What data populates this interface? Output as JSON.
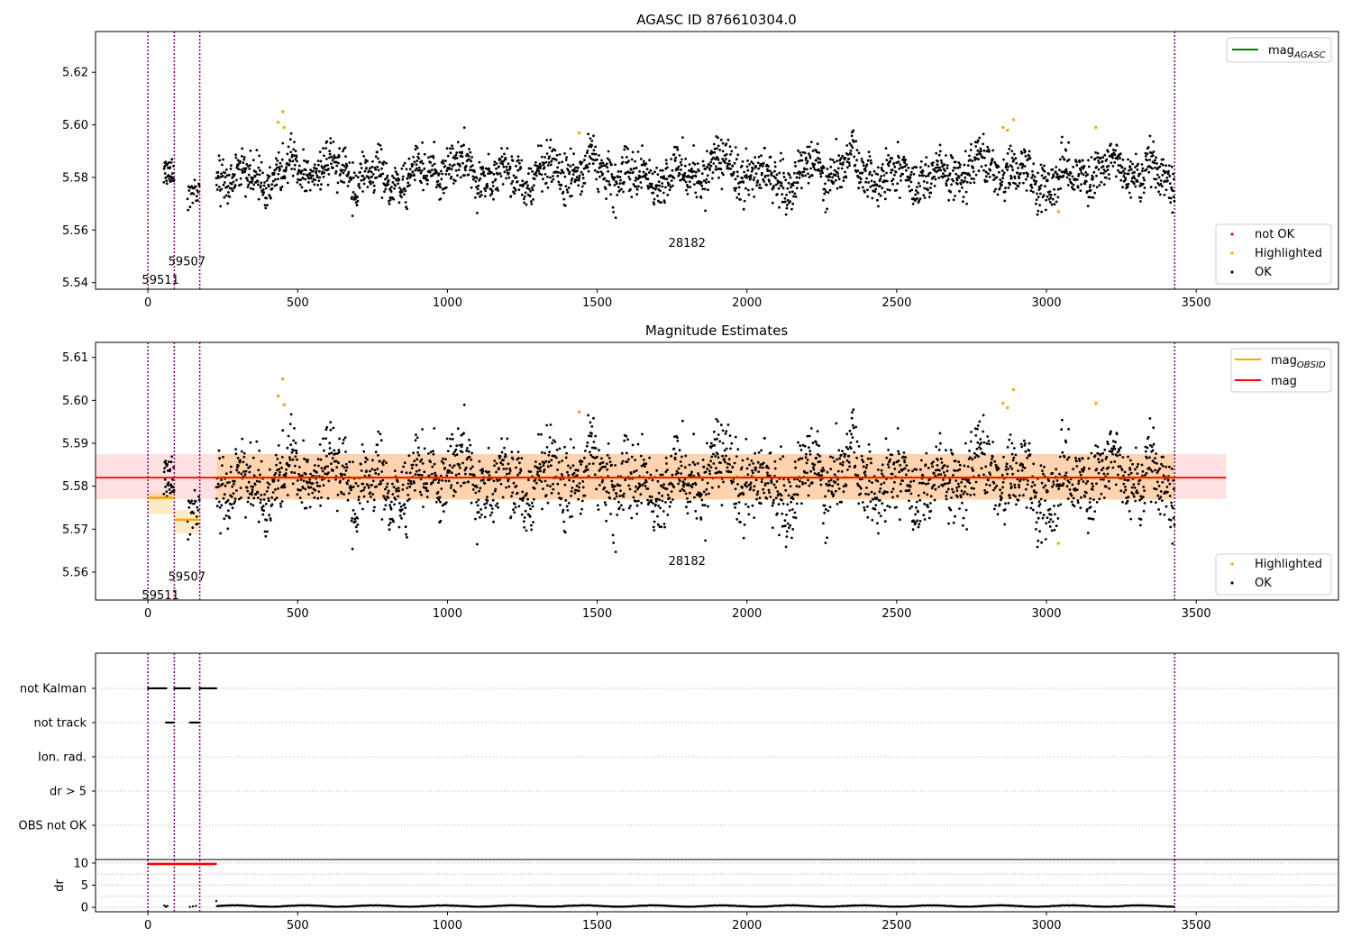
{
  "chart_data": [
    {
      "type": "scatter",
      "title": "AGASC ID 876610304.0",
      "xlim": [
        -175,
        3975
      ],
      "ylim": [
        5.5375,
        5.6355
      ],
      "xticks": [
        0,
        500,
        1000,
        1500,
        2000,
        2500,
        3000,
        3500
      ],
      "yticks": [
        5.54,
        5.56,
        5.58,
        5.6,
        5.62
      ],
      "grid": false,
      "obs_boundaries": [
        0,
        88,
        173,
        3428
      ],
      "obs_labels": [
        {
          "text": "59511",
          "x": 42,
          "y": 5.541
        },
        {
          "text": "59507",
          "x": 130,
          "y": 5.548
        },
        {
          "text": "28182",
          "x": 1800,
          "y": 5.555
        }
      ],
      "legends": [
        {
          "position": "upper-right",
          "entries": [
            {
              "label": "mag",
              "sub": "AGASC",
              "marker": "line",
              "color": "#008000"
            }
          ]
        },
        {
          "position": "lower-right",
          "entries": [
            {
              "label": "not OK",
              "marker": "dot",
              "color": "#ff0000"
            },
            {
              "label": "Highlighted",
              "marker": "dot",
              "color": "#ffa500"
            },
            {
              "label": "OK",
              "marker": "dot",
              "color": "#000000"
            }
          ]
        }
      ],
      "series": [
        {
          "name": "OK",
          "color": "#000000",
          "summary": "~2500 points, mostly between 5.570 and 5.595 around 5.582"
        },
        {
          "name": "Highlighted",
          "color": "#ffa500",
          "points": [
            [
              435,
              5.601
            ],
            [
              450,
              5.605
            ],
            [
              455,
              5.599
            ],
            [
              1440,
              5.597
            ],
            [
              2855,
              5.599
            ],
            [
              2870,
              5.598
            ],
            [
              2890,
              5.602
            ],
            [
              3040,
              5.567
            ],
            [
              3165,
              5.599
            ]
          ]
        }
      ]
    },
    {
      "type": "scatter",
      "title": "Magnitude Estimates",
      "xlim": [
        -175,
        3975
      ],
      "ylim": [
        5.5535,
        5.6135
      ],
      "xticks": [
        0,
        500,
        1000,
        1500,
        2000,
        2500,
        3000,
        3500
      ],
      "yticks": [
        5.56,
        5.57,
        5.58,
        5.59,
        5.6,
        5.61
      ],
      "grid": false,
      "obs_boundaries": [
        0,
        88,
        173,
        3428
      ],
      "obs_labels": [
        {
          "text": "59511",
          "x": 42,
          "y": 5.5545
        },
        {
          "text": "59507",
          "x": 130,
          "y": 5.5588
        },
        {
          "text": "28182",
          "x": 1800,
          "y": 5.5625
        }
      ],
      "mag": {
        "value": 5.582,
        "band": [
          5.577,
          5.5875
        ],
        "x": [
          -175,
          3600
        ]
      },
      "mag_obsid": [
        {
          "x": [
            0,
            88
          ],
          "value": 5.5773,
          "band": [
            5.5735,
            5.5785
          ]
        },
        {
          "x": [
            88,
            173
          ],
          "value": 5.5722,
          "band": [
            5.569,
            5.5745
          ]
        },
        {
          "x": [
            230,
            3428
          ],
          "value": 5.582,
          "band": [
            5.5768,
            5.5875
          ]
        }
      ],
      "legends": [
        {
          "position": "upper-right",
          "entries": [
            {
              "label": "mag",
              "sub": "OBSID",
              "marker": "line",
              "color": "#ffa500"
            },
            {
              "label": "mag",
              "marker": "line",
              "color": "#ff0000"
            }
          ]
        },
        {
          "position": "lower-right",
          "entries": [
            {
              "label": "Highlighted",
              "marker": "dot",
              "color": "#ffa500"
            },
            {
              "label": "OK",
              "marker": "dot",
              "color": "#000000"
            }
          ]
        }
      ],
      "series": [
        {
          "name": "OK",
          "color": "#000000",
          "summary": "same observations as upper panel"
        },
        {
          "name": "Highlighted",
          "color": "#ffa500",
          "points": [
            [
              435,
              5.601
            ],
            [
              450,
              5.605
            ],
            [
              455,
              5.599
            ],
            [
              1440,
              5.5973
            ],
            [
              2855,
              5.5993
            ],
            [
              2870,
              5.5983
            ],
            [
              2890,
              5.6025
            ],
            [
              3040,
              5.5667
            ],
            [
              3165,
              5.5993
            ]
          ]
        }
      ]
    },
    {
      "type": "scatter",
      "title": "",
      "xlim": [
        -175,
        3975
      ],
      "categories": [
        "not Kalman",
        "not track",
        "Ion. rad.",
        "dr > 5",
        "OBS not OK"
      ],
      "flag_segments": [
        {
          "flag": "not Kalman",
          "ranges": [
            [
              0,
              62
            ],
            [
              88,
              142
            ],
            [
              173,
              228
            ]
          ]
        },
        {
          "flag": "not track",
          "ranges": [
            [
              60,
              88
            ],
            [
              140,
              173
            ]
          ]
        }
      ],
      "obs_boundaries": [
        0,
        88,
        173,
        3428
      ]
    },
    {
      "type": "scatter",
      "title": "",
      "ylabel": "dr",
      "xlim": [
        -175,
        3975
      ],
      "ylim": [
        -1,
        10.8
      ],
      "xticks": [
        0,
        500,
        1000,
        1500,
        2000,
        2500,
        3000,
        3500
      ],
      "yticks": [
        0,
        5,
        10
      ],
      "grid": true,
      "series": [
        {
          "name": "dr > 5",
          "color": "#ff0000",
          "x_range": [
            0,
            228
          ],
          "value": 9.8
        },
        {
          "name": "dr",
          "color": "#000000",
          "x_range": [
            230,
            3428
          ],
          "value": 0.3
        }
      ],
      "obs_boundaries": [
        0,
        88,
        173,
        3428
      ]
    }
  ]
}
